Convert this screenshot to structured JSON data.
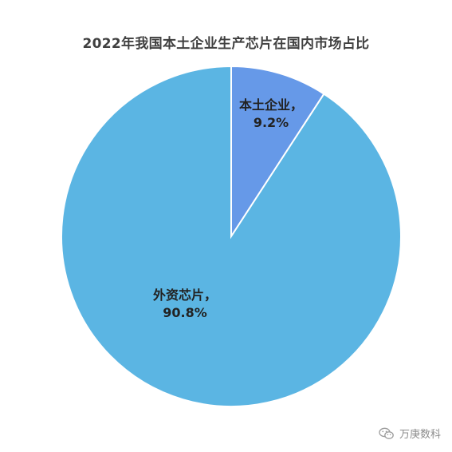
{
  "chart_data": {
    "type": "pie",
    "title": "2022年我国本土企业生产芯片在国内市场占比",
    "slices": [
      {
        "name": "本土企业",
        "value": 9.2,
        "label_line1": "本土企业，",
        "label_line2": "9.2%",
        "color": "#6699E8"
      },
      {
        "name": "外资芯片",
        "value": 90.8,
        "label_line1": "外资芯片，",
        "label_line2": "90.8%",
        "color": "#5BB5E3"
      }
    ]
  },
  "watermark": {
    "text": "万庚数科",
    "icon": "wechat-icon"
  }
}
